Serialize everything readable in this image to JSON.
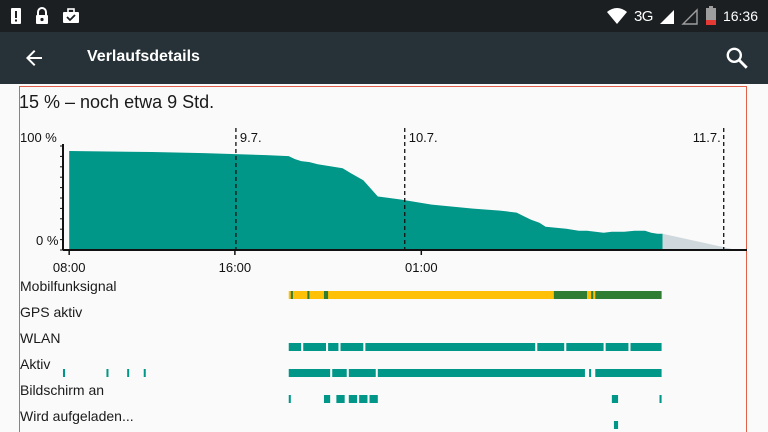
{
  "status_bar": {
    "time": "16:36",
    "network": "3G",
    "left_icons": [
      "alert-icon",
      "lock-icon",
      "work-briefcase-icon"
    ],
    "right_icons": [
      "wifi-icon",
      "signal-icon",
      "signal-empty-icon",
      "battery-low-icon"
    ],
    "battery_color": "#e53935"
  },
  "app_bar": {
    "title": "Verlaufsdetails",
    "back_icon": "arrow-back-icon",
    "search_icon": "search-icon",
    "background": "#263238"
  },
  "summary": "15 % – noch etwa 9 Std.",
  "chart_data": {
    "type": "area",
    "title": "",
    "y_unit": "%",
    "ylim": [
      0,
      100
    ],
    "y_tick_labels": [
      "100 %",
      "0 %"
    ],
    "x_tick_labels": [
      "08:00",
      "16:00",
      "01:00"
    ],
    "day_markers": [
      "9.7.",
      "10.7.",
      "11.7."
    ],
    "series": [
      {
        "kind": "actual",
        "color": "#009688",
        "x_hours": [
          0,
          4,
          6.5,
          9.5,
          10.6,
          10.9,
          11.2,
          11.6,
          12.0,
          12.6,
          13.2,
          13.6,
          14.2,
          14.9,
          16.0,
          17.5,
          18.5,
          19.5,
          20.8,
          21.6,
          22.0,
          22.3,
          22.7,
          23.0,
          23.5,
          24.0,
          24.6,
          25.0,
          25.8,
          26.2,
          26.8,
          27.3,
          27.8,
          28.1,
          28.4,
          28.65
        ],
        "values": [
          97,
          96,
          95,
          93,
          92,
          89,
          87,
          86,
          84,
          82,
          80,
          75,
          68,
          52,
          49,
          44,
          42,
          40,
          38,
          36,
          32,
          29,
          26,
          22,
          21,
          20,
          18,
          18,
          16,
          17,
          17,
          18,
          18,
          16,
          15,
          15
        ]
      },
      {
        "kind": "prediction",
        "color": "#cfd8dc",
        "x_hours": [
          28.65,
          32.0
        ],
        "values": [
          15,
          0
        ]
      }
    ],
    "x_range_hours": [
      -0.25,
      32.0
    ],
    "x_start_time": "08:00",
    "grid": false
  },
  "timelines": [
    {
      "label": "Mobilfunksignal",
      "color": "#ffc107",
      "alt_color": "#2e7d32",
      "segments": [
        [
          10.6,
          28.6
        ]
      ],
      "alt_segments": [
        [
          10.7,
          10.8
        ],
        [
          11.5,
          11.6
        ],
        [
          12.3,
          12.5
        ],
        [
          23.4,
          25.0
        ],
        [
          25.2,
          25.3
        ],
        [
          25.4,
          28.6
        ]
      ]
    },
    {
      "label": "GPS aktiv",
      "color": "#009688",
      "segments": []
    },
    {
      "label": "WLAN",
      "color": "#009688",
      "segments": [
        [
          10.6,
          11.2
        ],
        [
          11.3,
          12.4
        ],
        [
          12.5,
          13.0
        ],
        [
          13.1,
          14.2
        ],
        [
          14.3,
          22.5
        ],
        [
          22.6,
          23.9
        ],
        [
          24.0,
          25.8
        ],
        [
          25.9,
          27.0
        ],
        [
          27.1,
          28.6
        ]
      ]
    },
    {
      "label": "Aktiv",
      "color": "#009688",
      "segments": [
        [
          -0.3,
          -0.2
        ],
        [
          1.8,
          1.85
        ],
        [
          2.8,
          2.85
        ],
        [
          3.6,
          3.65
        ],
        [
          10.6,
          12.6
        ],
        [
          12.7,
          13.4
        ],
        [
          13.5,
          14.8
        ],
        [
          14.9,
          24.9
        ],
        [
          25.1,
          25.2
        ],
        [
          25.4,
          28.6
        ]
      ]
    },
    {
      "label": "Bildschirm an",
      "color": "#009688",
      "segments": [
        [
          10.6,
          10.7
        ],
        [
          12.3,
          12.6
        ],
        [
          12.9,
          13.3
        ],
        [
          13.5,
          13.9
        ],
        [
          14.0,
          14.4
        ],
        [
          14.5,
          14.9
        ],
        [
          26.2,
          26.5
        ],
        [
          28.5,
          28.6
        ]
      ]
    },
    {
      "label": "Wird aufgeladen...",
      "color": "#009688",
      "segments": [
        [
          26.3,
          26.5
        ]
      ]
    }
  ]
}
